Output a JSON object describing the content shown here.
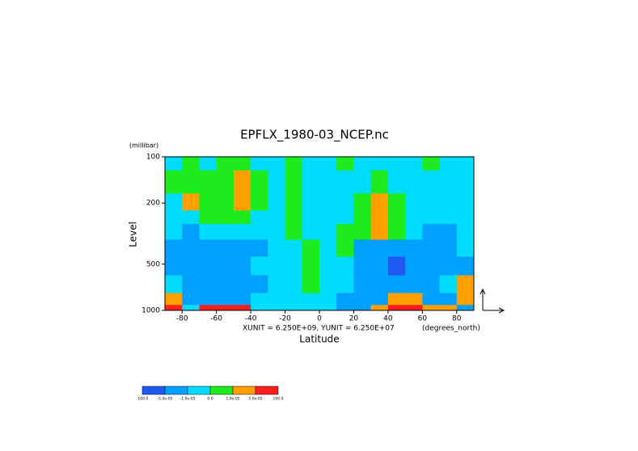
{
  "chart_data": {
    "type": "contour",
    "title": "EPFLX_1980-03_NCEP.nc",
    "y_unit": "(millibar)",
    "ylabel": "Level",
    "xlabel": "Latitude",
    "annotation": "XUNIT = 6.250E+09, YUNIT = 6.250E+07",
    "x_unit": "(degrees_north)",
    "x": [
      -85,
      -75,
      -65,
      -55,
      -45,
      -35,
      -25,
      -15,
      -5,
      5,
      15,
      25,
      35,
      45,
      55,
      65,
      75,
      85
    ],
    "y": [
      100,
      150,
      200,
      250,
      300,
      400,
      500,
      700,
      850,
      1000
    ],
    "z": [
      [
        -5e-06,
        5e-06,
        -5e-06,
        5e-06,
        5e-06,
        -5e-06,
        -5e-06,
        5e-06,
        -5e-06,
        -5e-06,
        5e-06,
        -5e-06,
        -5e-06,
        -5e-06,
        -5e-06,
        5e-06,
        -5e-06,
        -5e-06
      ],
      [
        5e-06,
        5e-06,
        5e-06,
        5e-06,
        3e-05,
        5e-06,
        -5e-06,
        5e-06,
        -5e-06,
        -5e-06,
        -5e-06,
        -5e-06,
        5e-06,
        -5e-06,
        -5e-06,
        -5e-06,
        -5e-06,
        -5e-06
      ],
      [
        -5e-06,
        3e-05,
        5e-06,
        5e-06,
        3e-05,
        5e-06,
        -5e-06,
        5e-06,
        -5e-06,
        -5e-06,
        -5e-06,
        5e-06,
        3e-05,
        5e-06,
        -5e-06,
        -5e-06,
        -5e-06,
        -5e-06
      ],
      [
        -5e-06,
        -5e-06,
        5e-06,
        5e-06,
        5e-06,
        -5e-06,
        -5e-06,
        5e-06,
        -5e-06,
        -5e-06,
        -5e-06,
        5e-06,
        3e-05,
        5e-06,
        -5e-06,
        -5e-06,
        -5e-06,
        -5e-06
      ],
      [
        -5e-06,
        -3e-05,
        -5e-06,
        -5e-06,
        -5e-06,
        -5e-06,
        -5e-06,
        5e-06,
        -5e-06,
        -5e-06,
        5e-06,
        5e-06,
        3e-05,
        5e-06,
        -5e-06,
        -3e-05,
        -3e-05,
        -5e-06
      ],
      [
        -3e-05,
        -3e-05,
        -3e-05,
        -3e-05,
        -3e-05,
        -3e-05,
        -5e-06,
        -5e-06,
        5e-06,
        -5e-06,
        5e-06,
        -3e-05,
        -3e-05,
        -3e-05,
        -3e-05,
        -3e-05,
        -3e-05,
        -5e-06
      ],
      [
        -3e-05,
        -3e-05,
        -3e-05,
        -3e-05,
        -3e-05,
        -5e-06,
        -5e-06,
        -5e-06,
        5e-06,
        -5e-06,
        -5e-06,
        -3e-05,
        -3e-05,
        -7e-05,
        -3e-05,
        -3e-05,
        -3e-05,
        -3e-05
      ],
      [
        -5e-06,
        -3e-05,
        -3e-05,
        -3e-05,
        -3e-05,
        -3e-05,
        -5e-06,
        -5e-06,
        5e-06,
        -5e-06,
        -5e-06,
        -3e-05,
        -3e-05,
        -3e-05,
        -3e-05,
        -3e-05,
        -5e-06,
        3e-05
      ],
      [
        3e-05,
        -3e-05,
        -3e-05,
        -3e-05,
        -3e-05,
        -5e-06,
        -5e-06,
        -5e-06,
        -5e-06,
        -5e-06,
        -3e-05,
        -3e-05,
        -3e-05,
        3e-05,
        3e-05,
        -3e-05,
        -3e-05,
        3e-05
      ],
      [
        7e-05,
        -5e-06,
        7e-05,
        7e-05,
        7e-05,
        -5e-06,
        -5e-06,
        -5e-06,
        -5e-06,
        -5e-06,
        -3e-05,
        -3e-05,
        3e-05,
        7e-05,
        7e-05,
        3e-05,
        3e-05,
        -3e-05
      ]
    ],
    "xlim": [
      -90,
      90
    ],
    "xticks": [
      -80,
      -60,
      -40,
      -20,
      0,
      20,
      40,
      60,
      80
    ],
    "ylim": [
      1000,
      100
    ],
    "yticks": [
      100,
      200,
      500,
      1000
    ],
    "ylog": true,
    "levels": [
      {
        "value": -100,
        "label": "-100.0"
      },
      {
        "value": -5e-05,
        "label": "-5.0e-05"
      },
      {
        "value": -1e-05,
        "label": "-1.0e-05"
      },
      {
        "value": 0,
        "label": "0.0"
      },
      {
        "value": 1e-05,
        "label": "1.0e-05"
      },
      {
        "value": 5e-05,
        "label": "5.0e-05"
      },
      {
        "value": 100,
        "label": "100.0"
      }
    ],
    "colors": [
      "#1e5af0",
      "#00a0ff",
      "#00dcff",
      "#1eeb1e",
      "#ffa000",
      "#ff1e1e"
    ]
  }
}
